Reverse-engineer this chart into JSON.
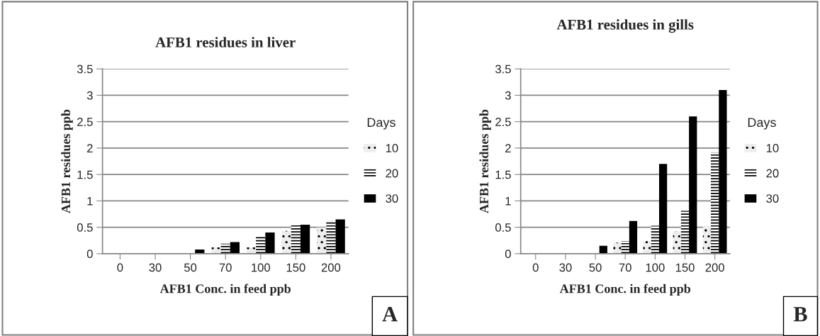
{
  "chart_data": [
    {
      "type": "bar",
      "title": "AFB1 residues in liver",
      "xlabel": "AFB1 Conc. in feed ppb",
      "ylabel": "AFB1 residues ppb",
      "legend_title": "Days",
      "legend": "right",
      "grid": "y",
      "categories": [
        "0",
        "30",
        "50",
        "70",
        "100",
        "150",
        "200"
      ],
      "ylim": [
        0,
        3.5
      ],
      "yticks": [
        0,
        0.5,
        1,
        1.5,
        2,
        2.5,
        3,
        3.5
      ],
      "series": [
        {
          "name": "10",
          "color": "#eeeeee",
          "values": [
            0,
            0,
            0,
            0.12,
            0.12,
            0.43,
            0.5
          ]
        },
        {
          "name": "20",
          "color": "#ffffff",
          "values": [
            0,
            0,
            0,
            0.19,
            0.34,
            0.54,
            0.62
          ]
        },
        {
          "name": "30",
          "color": "#000000",
          "values": [
            0,
            0,
            0.08,
            0.22,
            0.4,
            0.55,
            0.65
          ]
        }
      ],
      "annotations": [
        "A"
      ]
    },
    {
      "type": "bar",
      "title": "AFB1 residues in gills",
      "xlabel": "AFB1 Conc. in feed ppb",
      "ylabel": "AFB1 residues ppb",
      "legend_title": "Days",
      "legend": "right",
      "grid": "y",
      "categories": [
        "0",
        "30",
        "50",
        "70",
        "100",
        "150",
        "200"
      ],
      "ylim": [
        0,
        3.5
      ],
      "yticks": [
        0,
        0.5,
        1,
        1.5,
        2,
        2.5,
        3,
        3.5
      ],
      "series": [
        {
          "name": "10",
          "color": "#eeeeee",
          "values": [
            0,
            0,
            0,
            0.21,
            0.24,
            0.42,
            0.52
          ]
        },
        {
          "name": "20",
          "color": "#ffffff",
          "values": [
            0,
            0,
            0,
            0.24,
            0.53,
            0.81,
            1.91
          ]
        },
        {
          "name": "30",
          "color": "#000000",
          "values": [
            0,
            0,
            0.15,
            0.62,
            1.7,
            2.6,
            3.1
          ]
        }
      ],
      "annotations": [
        "B"
      ]
    }
  ]
}
